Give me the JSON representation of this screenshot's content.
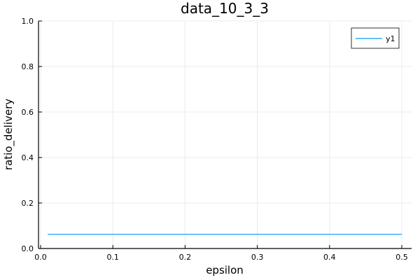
{
  "chart_data": {
    "type": "line",
    "title": "data_10_3_3",
    "xlabel": "epsilon",
    "ylabel": "ratio_delivery",
    "xlim": [
      0.0,
      0.5
    ],
    "ylim": [
      0.0,
      1.0
    ],
    "xticks": [
      "0.0",
      "0.1",
      "0.2",
      "0.3",
      "0.4",
      "0.5"
    ],
    "yticks": [
      "0.0",
      "0.2",
      "0.4",
      "0.6",
      "0.8",
      "1.0"
    ],
    "grid": true,
    "legend_position": "top-right",
    "series": [
      {
        "name": "y1",
        "color": "#009af9",
        "x": [
          0.01,
          0.5
        ],
        "y": [
          0.0625,
          0.0625
        ]
      }
    ]
  }
}
